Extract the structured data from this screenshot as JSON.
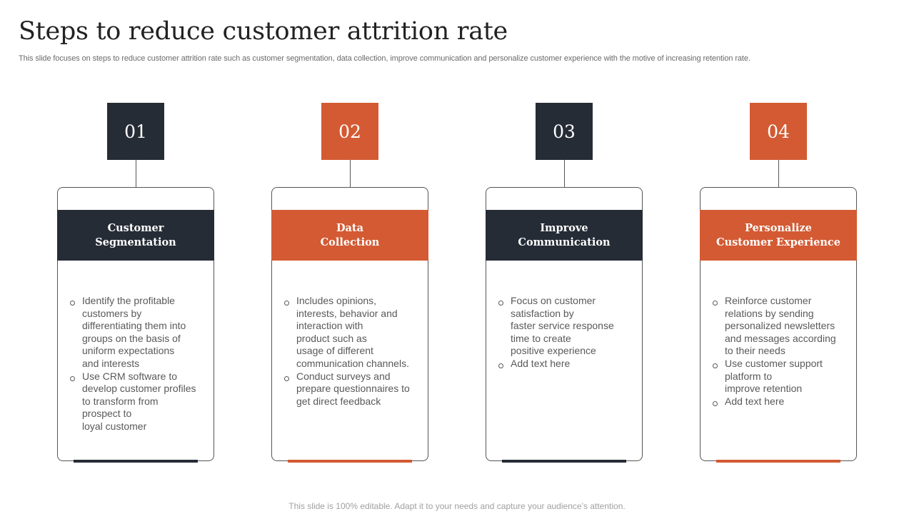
{
  "page": {
    "title": "Steps to reduce customer attrition rate",
    "subtitle": "This slide focuses on steps to reduce customer attrition rate such as customer segmentation, data collection, improve communication and personalize customer experience with the motive of increasing retention rate.",
    "footer": "This slide is 100% editable. Adapt it to your needs and capture your audience’s attention."
  },
  "colors": {
    "dark": "#262c36",
    "orange": "#d35a33"
  },
  "steps": [
    {
      "number": "01",
      "heading": "Customer\nSegmentation",
      "bullets": [
        "Identify the profitable\ncustomers by\ndifferentiating  them into\ngroups on the basis of\nuniform expectations\nand interests",
        "Use CRM software to\ndevelop customer profiles\nto transform from\nprospect to\nloyal customer"
      ]
    },
    {
      "number": "02",
      "heading": "Data\nCollection",
      "bullets": [
        "Includes opinions,\ninterests, behavior  and\ninteraction with\nproduct such as\nusage of different\ncommunication channels.",
        "Conduct surveys and\nprepare questionnaires to\nget direct feedback"
      ]
    },
    {
      "number": "03",
      "heading": "Improve\nCommunication",
      "bullets": [
        "Focus on customer\nsatisfaction by\nfaster service response\ntime to create\npositive experience",
        "Add text here"
      ]
    },
    {
      "number": "04",
      "heading": "Personalize\nCustomer Experience",
      "bullets": [
        "Reinforce customer\nrelations by sending\npersonalized newsletters\nand messages according\nto their needs",
        "Use customer support\nplatform to\nimprove retention",
        "Add text here"
      ]
    }
  ]
}
